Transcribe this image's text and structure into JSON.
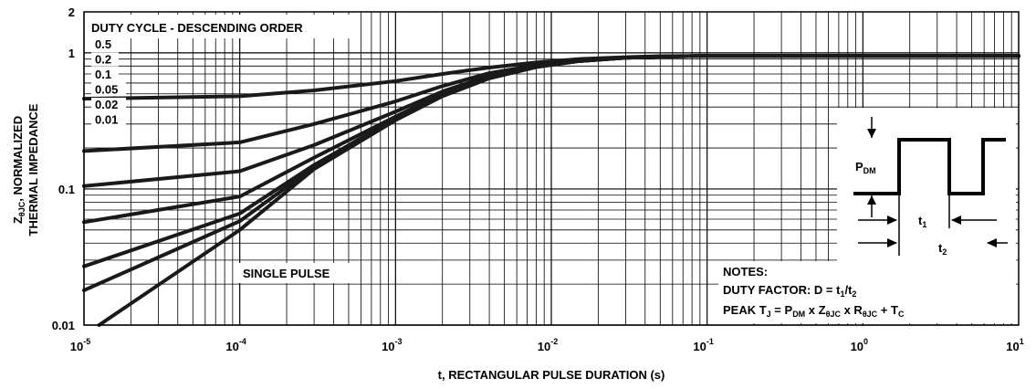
{
  "chart_data": {
    "type": "line",
    "title": "",
    "xlabel": "t, RECTANGULAR PULSE DURATION (s)",
    "ylabel_line1": "Z",
    "ylabel_sub": "θJC",
    "ylabel_rest": ", NORMALIZED",
    "ylabel_line2": "THERMAL IMPEDANCE",
    "x_scale": "log",
    "y_scale": "log",
    "xlim": [
      1e-05,
      10
    ],
    "ylim": [
      0.01,
      2
    ],
    "grid": true,
    "x_ticks": [
      {
        "base": "10",
        "exp": "-5"
      },
      {
        "base": "10",
        "exp": "-4"
      },
      {
        "base": "10",
        "exp": "-3"
      },
      {
        "base": "10",
        "exp": "-2"
      },
      {
        "base": "10",
        "exp": "-1"
      },
      {
        "base": "10",
        "exp": "0"
      },
      {
        "base": "10",
        "exp": "1"
      }
    ],
    "y_ticks": [
      "0.01",
      "0.1",
      "1",
      "2"
    ],
    "legend_title": "DUTY CYCLE - DESCENDING ORDER",
    "legend_entries": [
      "0.5",
      "0.2",
      "0.1",
      "0.05",
      "0.02",
      "0.01"
    ],
    "single_pulse_label": "SINGLE PULSE",
    "series": [
      {
        "name": "0.5",
        "x": [
          1e-05,
          0.0001,
          0.0003,
          0.001,
          0.002,
          0.004,
          0.008,
          0.015,
          0.03,
          0.05,
          0.1,
          10
        ],
        "y": [
          0.46,
          0.48,
          0.53,
          0.62,
          0.7,
          0.78,
          0.85,
          0.9,
          0.93,
          0.945,
          0.95,
          0.95
        ]
      },
      {
        "name": "0.2",
        "x": [
          1e-05,
          0.0001,
          0.0003,
          0.001,
          0.002,
          0.004,
          0.008,
          0.015,
          0.03,
          0.05,
          0.1,
          10
        ],
        "y": [
          0.19,
          0.22,
          0.3,
          0.44,
          0.57,
          0.71,
          0.81,
          0.88,
          0.925,
          0.94,
          0.95,
          0.95
        ]
      },
      {
        "name": "0.1",
        "x": [
          1e-05,
          0.0001,
          0.0003,
          0.001,
          0.002,
          0.004,
          0.008,
          0.015,
          0.03,
          0.05,
          0.1,
          10
        ],
        "y": [
          0.105,
          0.135,
          0.21,
          0.37,
          0.52,
          0.68,
          0.8,
          0.875,
          0.92,
          0.94,
          0.95,
          0.95
        ]
      },
      {
        "name": "0.05",
        "x": [
          1e-05,
          0.0001,
          0.0003,
          0.001,
          0.002,
          0.004,
          0.008,
          0.015,
          0.03,
          0.05,
          0.1,
          10
        ],
        "y": [
          0.057,
          0.088,
          0.17,
          0.34,
          0.5,
          0.665,
          0.795,
          0.87,
          0.92,
          0.94,
          0.95,
          0.95
        ]
      },
      {
        "name": "0.02",
        "x": [
          1e-05,
          0.0001,
          0.0003,
          0.001,
          0.002,
          0.004,
          0.008,
          0.015,
          0.03,
          0.05,
          0.1,
          10
        ],
        "y": [
          0.027,
          0.066,
          0.15,
          0.33,
          0.49,
          0.66,
          0.79,
          0.87,
          0.92,
          0.94,
          0.95,
          0.95
        ]
      },
      {
        "name": "0.01",
        "x": [
          1e-05,
          0.0001,
          0.0003,
          0.001,
          0.002,
          0.004,
          0.008,
          0.015,
          0.03,
          0.05,
          0.1,
          10
        ],
        "y": [
          0.018,
          0.058,
          0.145,
          0.325,
          0.485,
          0.655,
          0.79,
          0.87,
          0.92,
          0.94,
          0.95,
          0.95
        ]
      },
      {
        "name": "SINGLE PULSE",
        "x": [
          1.25e-05,
          0.0001,
          0.0003,
          0.001,
          0.002,
          0.004,
          0.008,
          0.015,
          0.03,
          0.05,
          0.1,
          10
        ],
        "y": [
          0.01,
          0.05,
          0.14,
          0.32,
          0.48,
          0.65,
          0.785,
          0.87,
          0.92,
          0.94,
          0.95,
          0.95
        ]
      }
    ],
    "notes": {
      "title": "NOTES:",
      "line1_prefix": "DUTY FACTOR: D = t",
      "line1_sub1": "1",
      "line1_mid": "/t",
      "line1_sub2": "2",
      "line2": [
        {
          "t": "PEAK T"
        },
        {
          "t": "J",
          "sub": true
        },
        {
          "t": " = P"
        },
        {
          "t": "DM",
          "sub": true
        },
        {
          "t": " x Z"
        },
        {
          "t": "θJC",
          "sub": true
        },
        {
          "t": " x R"
        },
        {
          "t": "θJC",
          "sub": true
        },
        {
          "t": " + T"
        },
        {
          "t": "C",
          "sub": true
        }
      ]
    },
    "inset": {
      "pdm": "P",
      "pdm_sub": "DM",
      "t1": "t",
      "t1_sub": "1",
      "t2": "t",
      "t2_sub": "2"
    }
  }
}
